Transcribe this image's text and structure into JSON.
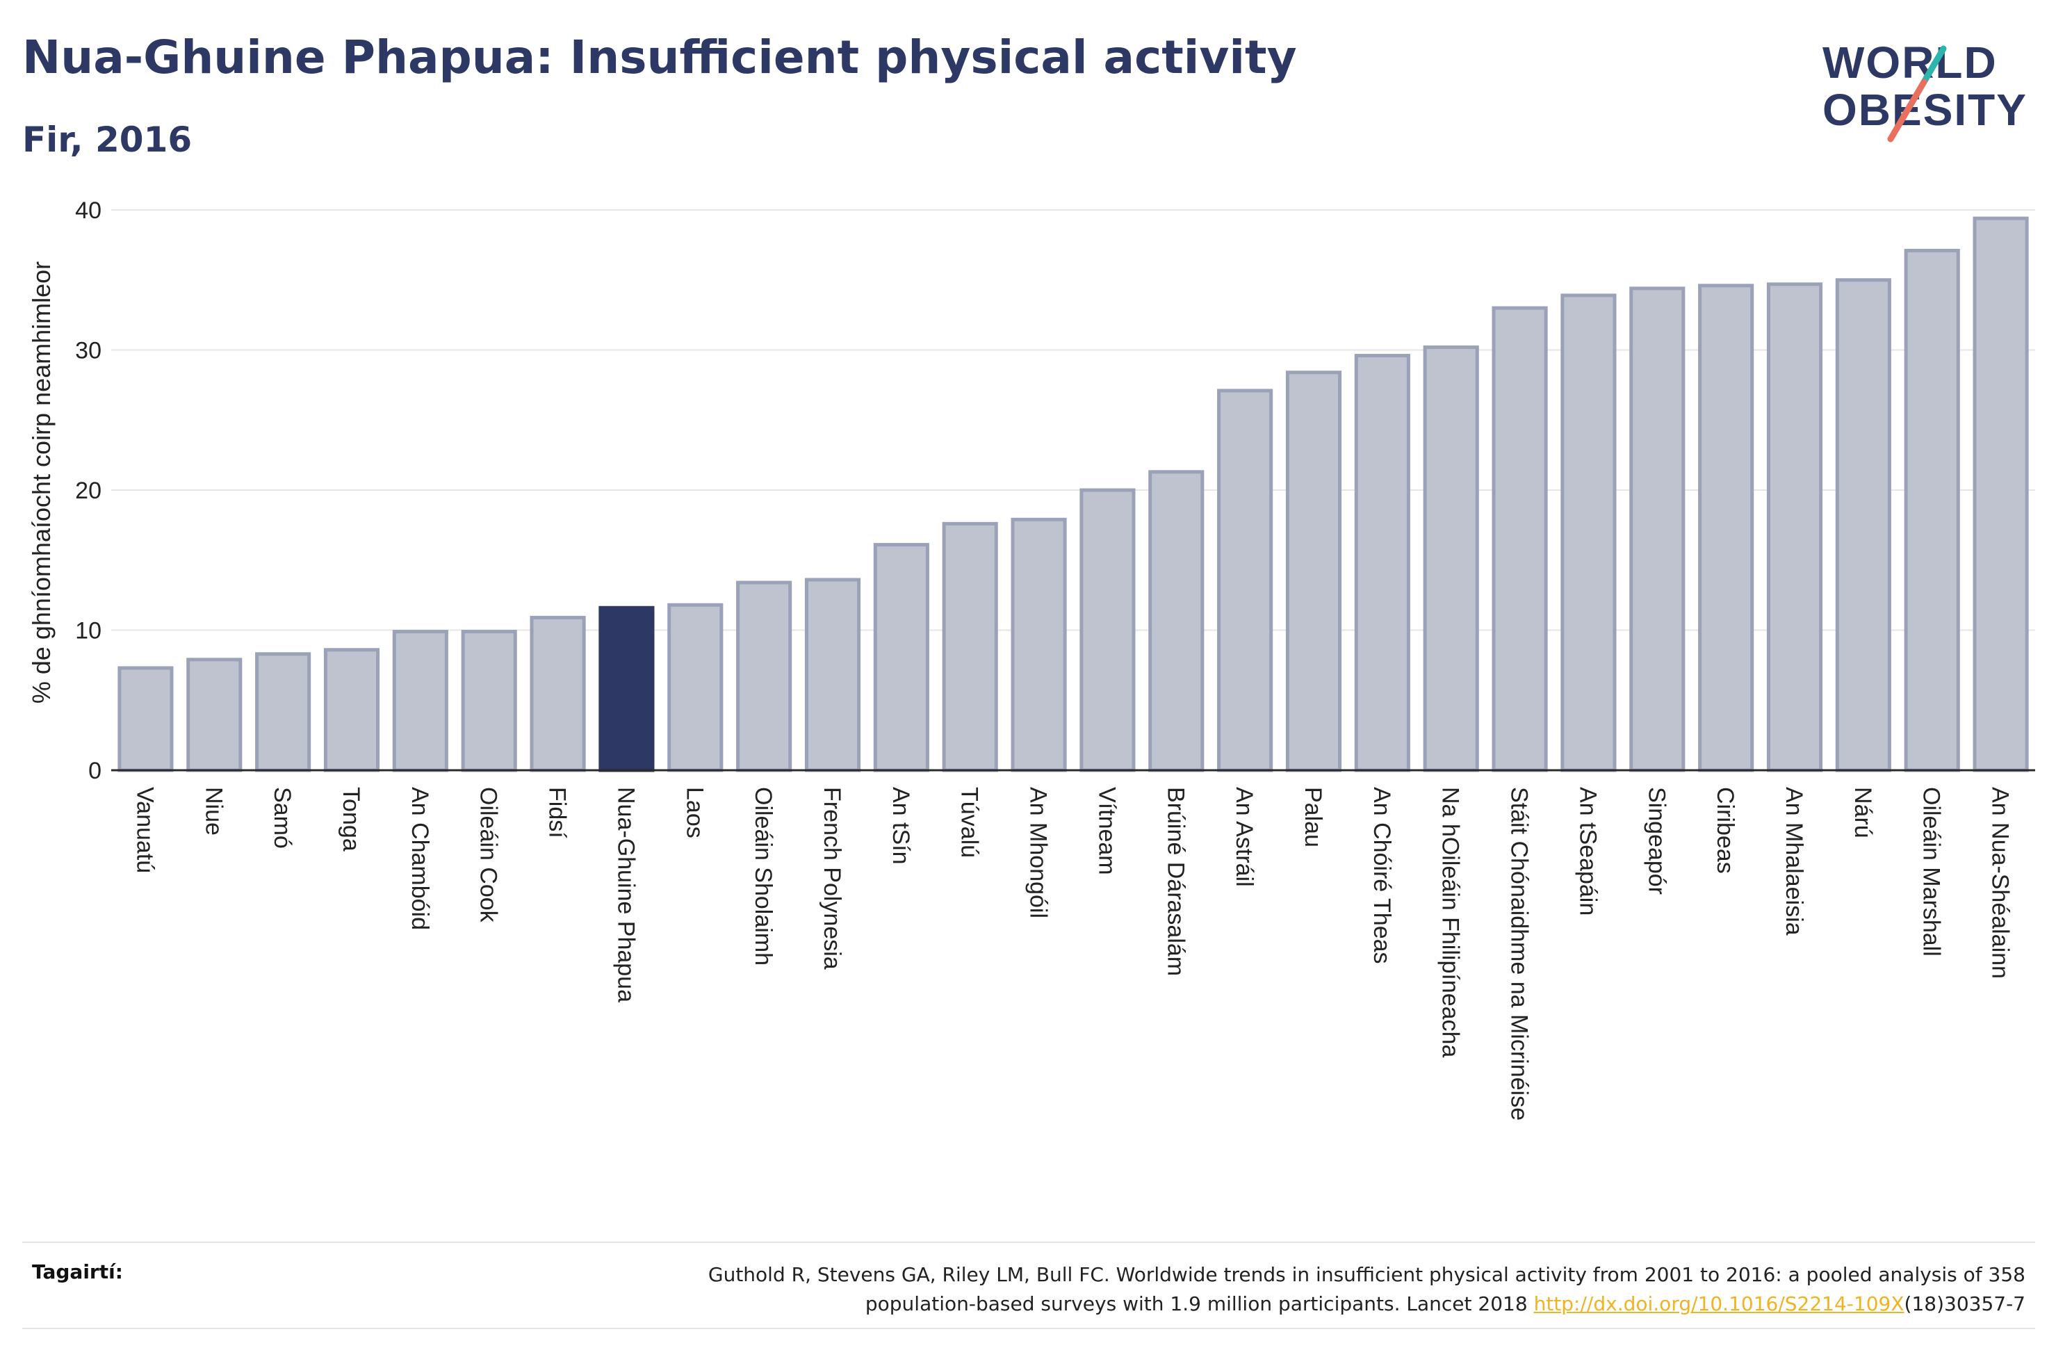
{
  "title": "Nua-Ghuine Phapua: Insufficient physical activity",
  "subtitle": "Fir, 2016",
  "logo": {
    "line1": "WORLD",
    "line2": "OBESITY"
  },
  "colors": {
    "title": "#2d3964",
    "bar": "#bfc3d0",
    "bar_border": "#9ba2b8",
    "highlight": "#2d3964",
    "accent_teal": "#2bb5ac",
    "accent_coral": "#e9705f",
    "link": "#f0b323"
  },
  "chart_data": {
    "type": "bar",
    "title": "Nua-Ghuine Phapua: Insufficient physical activity",
    "subtitle": "Fir, 2016",
    "xlabel": "",
    "ylabel": "% de ghníomhaíocht coirp neamhimleor",
    "ylim": [
      0,
      40
    ],
    "yticks": [
      0,
      10,
      20,
      30,
      40
    ],
    "grid": true,
    "highlight": "Nua-Ghuine Phapua",
    "categories": [
      "Vanuatú",
      "Niue",
      "Samó",
      "Tonga",
      "An Chambóid",
      "Oileáin Cook",
      "Fidsí",
      "Nua-Ghuine Phapua",
      "Laos",
      "Oileáin Sholaimh",
      "French Polynesia",
      "An tSín",
      "Túvalú",
      "An Mhongóil",
      "Vítneam",
      "Brúiné Dárasalám",
      "An Astráil",
      "Palau",
      "An Chóiré Theas",
      "Na hOileáin Fhilipíneacha",
      "Stáit Chónaidhme na Micrinéise",
      "An tSeapáin",
      "Singeapór",
      "Ciribeas",
      "An Mhalaeisia",
      "Nárú",
      "Oileáin Marshall",
      "An Nua-Shéalainn"
    ],
    "values": [
      7.3,
      7.9,
      8.3,
      8.6,
      9.9,
      9.9,
      10.9,
      11.6,
      11.8,
      13.4,
      13.6,
      16.1,
      17.6,
      17.9,
      20.0,
      21.3,
      27.1,
      28.4,
      29.6,
      30.2,
      33.0,
      33.9,
      34.4,
      34.6,
      34.7,
      35.0,
      37.1,
      39.4
    ]
  },
  "reference": {
    "label": "Tagairtí:",
    "text_line1": "Guthold R, Stevens GA, Riley LM, Bull FC. Worldwide trends in insufficient physical activity from 2001 to 2016: a pooled analysis of 358",
    "text_line2_pre": "population-based surveys with 1.9 million participants. Lancet 2018 ",
    "link": "http://dx.doi.org/10.1016/S2214-109X",
    "text_line2_post": "(18)30357-7"
  }
}
